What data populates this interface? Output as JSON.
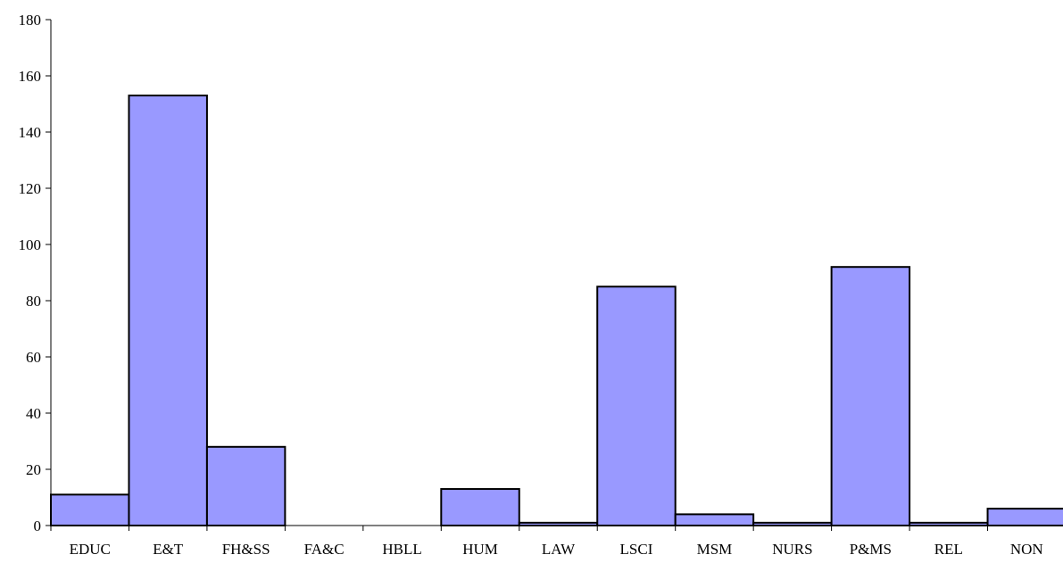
{
  "chart_data": {
    "type": "bar",
    "title": "",
    "xlabel": "",
    "ylabel": "",
    "categories": [
      "EDUC",
      "E&T",
      "FH&SS",
      "FA&C",
      "HBLL",
      "HUM",
      "LAW",
      "LSCI",
      "MSM",
      "NURS",
      "P&MS",
      "REL",
      "NON"
    ],
    "values": [
      11,
      153,
      28,
      0,
      0,
      13,
      1,
      85,
      4,
      1,
      92,
      1,
      6
    ],
    "ylim": [
      0,
      180
    ],
    "yticks": [
      0,
      20,
      40,
      60,
      80,
      100,
      120,
      140,
      160,
      180
    ],
    "grid": false,
    "legend": "none",
    "bar_color": "#9999ff",
    "bar_edge_color": "#000000"
  }
}
